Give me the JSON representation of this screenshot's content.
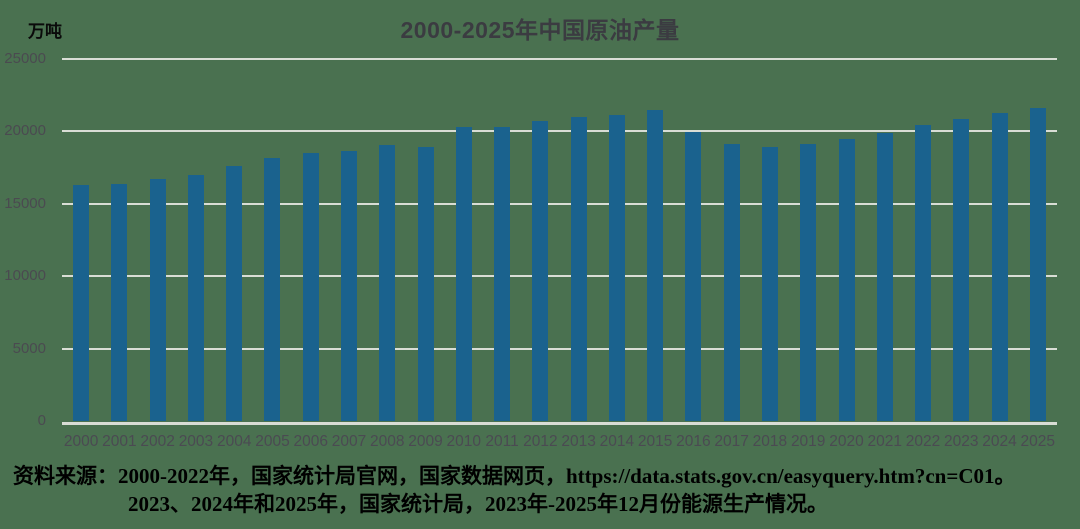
{
  "chart_data": {
    "type": "bar",
    "title": "2000-2025年中国原油产量",
    "unit": "万吨",
    "categories": [
      "2000",
      "2001",
      "2002",
      "2003",
      "2004",
      "2005",
      "2006",
      "2007",
      "2008",
      "2009",
      "2010",
      "2011",
      "2012",
      "2013",
      "2014",
      "2015",
      "2016",
      "2017",
      "2018",
      "2019",
      "2020",
      "2021",
      "2022",
      "2023",
      "2024",
      "2025"
    ],
    "values": [
      16300,
      16396,
      16700,
      16960,
      17587,
      18135,
      18477,
      18632,
      19044,
      18949,
      20301,
      20288,
      20748,
      20992,
      21143,
      21456,
      19969,
      19151,
      18911,
      19101,
      19477,
      19898,
      20467,
      20891,
      21257,
      21650
    ],
    "xlabel": "",
    "ylabel": "万吨",
    "ylim": [
      0,
      25000
    ],
    "ytick_interval": 5000,
    "grid": true,
    "legend": false,
    "bar_color": "#1a628e",
    "background_color": "#4a7150",
    "gridline_color": "#d9ddd5"
  },
  "source": {
    "line1": "资料来源：2000-2022年，国家统计局官网，国家数据网页，https://data.stats.gov.cn/easyquery.htm?cn=C01。",
    "line2": "2023、2024年和2025年，国家统计局，2023年-2025年12月份能源生产情况。"
  }
}
